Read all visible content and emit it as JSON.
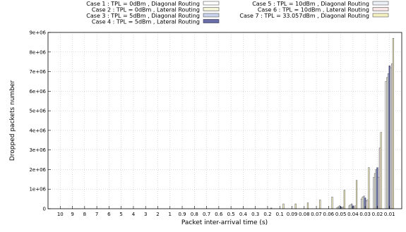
{
  "chart_data": {
    "type": "bar",
    "xlabel": "Packet inter-arrival time (s)",
    "ylabel": "Dropped packets number",
    "ylim": [
      0,
      9000000
    ],
    "yticks": [
      "0",
      "1e+06",
      "2e+06",
      "3e+06",
      "4e+06",
      "5e+06",
      "6e+06",
      "7e+06",
      "8e+06",
      "9e+06"
    ],
    "grid": true,
    "legend_position": "top",
    "categories": [
      "10",
      "9",
      "8",
      "7",
      "6",
      "5",
      "4",
      "3",
      "2",
      "1",
      "0.9",
      "0.8",
      "0.7",
      "0.6",
      "0.5",
      "0.4",
      "0.3",
      "0.2",
      "0.1",
      "0.09",
      "0.08",
      "0.07",
      "0.06",
      "0.05",
      "0.04",
      "0.03",
      "0.02",
      "0.01"
    ],
    "series": [
      {
        "name": "Case 1 : TPL = 0dBm , Diagonal Routing",
        "fill": "#ffffff",
        "stroke": "#555555",
        "values": [
          0,
          0,
          0,
          0,
          0,
          0,
          0,
          0,
          0,
          0,
          0,
          0,
          0,
          0,
          0,
          0,
          0,
          0,
          0,
          0,
          0,
          0,
          0,
          50000,
          150000,
          500000,
          1600000,
          6500000
        ]
      },
      {
        "name": "Case 2 : TPL = 0dBm , Lateral Routing",
        "fill": "#f3f3da",
        "stroke": "#555555",
        "values": [
          0,
          0,
          0,
          0,
          0,
          0,
          0,
          0,
          0,
          0,
          0,
          0,
          0,
          0,
          0,
          0,
          0,
          0,
          0,
          0,
          0,
          0,
          0,
          100000,
          200000,
          600000,
          1800000,
          6700000
        ]
      },
      {
        "name": "Case 3 : TPL = 5dBm , Diagonal Routing",
        "fill": "#c9d3ec",
        "stroke": "#555555",
        "values": [
          0,
          0,
          0,
          0,
          0,
          0,
          0,
          0,
          0,
          0,
          0,
          0,
          0,
          0,
          0,
          0,
          0,
          0,
          0,
          0,
          0,
          0,
          0,
          150000,
          250000,
          650000,
          2000000,
          6900000
        ]
      },
      {
        "name": "Case 4 : TPL = 5dBm , Lateral Routing",
        "fill": "#6a6ea6",
        "stroke": "#333355",
        "values": [
          0,
          0,
          0,
          0,
          0,
          0,
          0,
          0,
          0,
          0,
          0,
          0,
          0,
          0,
          0,
          0,
          0,
          0,
          0,
          0,
          0,
          0,
          0,
          100000,
          150000,
          550000,
          2100000,
          7300000
        ]
      },
      {
        "name": "Case 5 : TPL = 10dBm , Diagonal Routing",
        "fill": "#eef2f8",
        "stroke": "#555555",
        "values": [
          0,
          0,
          0,
          0,
          0,
          0,
          0,
          0,
          0,
          0,
          0,
          0,
          0,
          0,
          0,
          0,
          0,
          0,
          0,
          0,
          0,
          0,
          0,
          50000,
          100000,
          400000,
          1600000,
          7200000
        ]
      },
      {
        "name": "Case 6 : TPL = 10dBm , Lateral Routing",
        "fill": "#f7e4e4",
        "stroke": "#555555",
        "values": [
          0,
          0,
          0,
          0,
          0,
          0,
          0,
          0,
          0,
          0,
          0,
          0,
          0,
          0,
          0,
          0,
          0,
          0,
          0,
          0,
          0,
          0,
          0,
          100000,
          150000,
          450000,
          3100000,
          7400000
        ]
      },
      {
        "name": "Case 7 : TPL = 33.057dBm , Diagonal Routing",
        "fill": "#f4f0c0",
        "stroke": "#555555",
        "values": [
          0,
          0,
          0,
          0,
          0,
          0,
          0,
          0,
          0,
          0,
          0,
          0,
          0,
          0,
          0,
          0,
          0,
          40000,
          250000,
          250000,
          300000,
          450000,
          600000,
          950000,
          1450000,
          2100000,
          3900000,
          8700000
        ]
      }
    ]
  }
}
